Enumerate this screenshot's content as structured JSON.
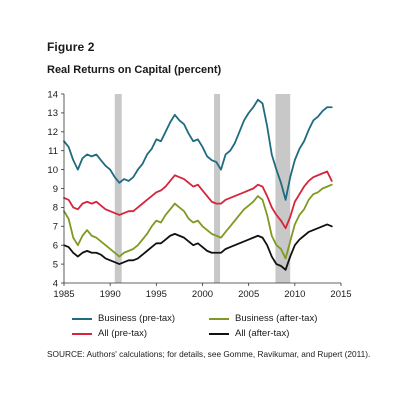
{
  "figure_label": "Figure 2",
  "title": "Real Returns on Capital (percent)",
  "source": "SOURCE: Authors' calculations; for details, see Gomme, Ravikumar, and Rupert (2011).",
  "colors": {
    "business_pre_tax": "#1f6b80",
    "all_pre_tax": "#d6253b",
    "business_after_tax": "#7f9a23",
    "all_after_tax": "#111111",
    "recession": "#c8c8c8",
    "axis": "#333333"
  },
  "chart_data": {
    "type": "line",
    "title": "Real Returns on Capital (percent)",
    "xlabel": "",
    "ylabel": "",
    "xlim": [
      1985,
      2015
    ],
    "ylim": [
      4,
      14
    ],
    "x_ticks": [
      1985,
      1990,
      1995,
      2000,
      2005,
      2010,
      2015
    ],
    "y_ticks": [
      4,
      5,
      6,
      7,
      8,
      9,
      10,
      11,
      12,
      13,
      14
    ],
    "grid": false,
    "legend_position": "bottom",
    "recession_shading": [
      {
        "start": 1990.5,
        "end": 1991.25
      },
      {
        "start": 2001.25,
        "end": 2001.9
      },
      {
        "start": 2007.9,
        "end": 2009.5
      }
    ],
    "series": [
      {
        "name": "Business (pre-tax)",
        "color_key": "business_pre_tax",
        "x": [
          1985,
          1985.5,
          1986,
          1986.5,
          1987,
          1987.5,
          1988,
          1988.5,
          1989,
          1989.5,
          1990,
          1990.5,
          1991,
          1991.5,
          1992,
          1992.5,
          1993,
          1993.5,
          1994,
          1994.5,
          1995,
          1995.5,
          1996,
          1996.5,
          1997,
          1997.5,
          1998,
          1998.5,
          1999,
          1999.5,
          2000,
          2000.5,
          2001,
          2001.5,
          2002,
          2002.5,
          2003,
          2003.5,
          2004,
          2004.5,
          2005,
          2005.5,
          2006,
          2006.5,
          2007,
          2007.5,
          2008,
          2008.5,
          2009,
          2009.5,
          2010,
          2010.5,
          2011,
          2011.5,
          2012,
          2012.5,
          2013,
          2013.5,
          2014
        ],
        "y": [
          11.5,
          11.2,
          10.5,
          10.0,
          10.6,
          10.8,
          10.7,
          10.8,
          10.5,
          10.2,
          10.0,
          9.6,
          9.3,
          9.5,
          9.4,
          9.6,
          10.0,
          10.3,
          10.8,
          11.1,
          11.6,
          11.5,
          12.0,
          12.5,
          12.9,
          12.6,
          12.4,
          11.9,
          11.5,
          11.6,
          11.2,
          10.7,
          10.5,
          10.4,
          10.0,
          10.8,
          11.0,
          11.4,
          12.0,
          12.6,
          13.0,
          13.3,
          13.7,
          13.5,
          12.3,
          10.8,
          10.0,
          9.3,
          8.4,
          9.6,
          10.5,
          11.1,
          11.5,
          12.1,
          12.6,
          12.8,
          13.1,
          13.3,
          13.3
        ]
      },
      {
        "name": "All (pre-tax)",
        "color_key": "all_pre_tax",
        "x": [
          1985,
          1985.5,
          1986,
          1986.5,
          1987,
          1987.5,
          1988,
          1988.5,
          1989,
          1989.5,
          1990,
          1990.5,
          1991,
          1991.5,
          1992,
          1992.5,
          1993,
          1993.5,
          1994,
          1994.5,
          1995,
          1995.5,
          1996,
          1996.5,
          1997,
          1997.5,
          1998,
          1998.5,
          1999,
          1999.5,
          2000,
          2000.5,
          2001,
          2001.5,
          2002,
          2002.5,
          2003,
          2003.5,
          2004,
          2004.5,
          2005,
          2005.5,
          2006,
          2006.5,
          2007,
          2007.5,
          2008,
          2008.5,
          2009,
          2009.5,
          2010,
          2010.5,
          2011,
          2011.5,
          2012,
          2012.5,
          2013,
          2013.5,
          2014
        ],
        "y": [
          8.5,
          8.4,
          8.0,
          7.9,
          8.2,
          8.3,
          8.2,
          8.3,
          8.1,
          7.9,
          7.8,
          7.7,
          7.6,
          7.7,
          7.8,
          7.8,
          8.0,
          8.2,
          8.4,
          8.6,
          8.8,
          8.9,
          9.1,
          9.4,
          9.7,
          9.6,
          9.5,
          9.3,
          9.1,
          9.2,
          8.9,
          8.6,
          8.3,
          8.2,
          8.2,
          8.4,
          8.5,
          8.6,
          8.7,
          8.8,
          8.9,
          9.0,
          9.2,
          9.1,
          8.6,
          8.0,
          7.6,
          7.3,
          6.9,
          7.5,
          8.3,
          8.7,
          9.1,
          9.4,
          9.6,
          9.7,
          9.8,
          9.9,
          9.4
        ]
      },
      {
        "name": "Business (after-tax)",
        "color_key": "business_after_tax",
        "x": [
          1985,
          1985.5,
          1986,
          1986.5,
          1987,
          1987.5,
          1988,
          1988.5,
          1989,
          1989.5,
          1990,
          1990.5,
          1991,
          1991.5,
          1992,
          1992.5,
          1993,
          1993.5,
          1994,
          1994.5,
          1995,
          1995.5,
          1996,
          1996.5,
          1997,
          1997.5,
          1998,
          1998.5,
          1999,
          1999.5,
          2000,
          2000.5,
          2001,
          2001.5,
          2002,
          2002.5,
          2003,
          2003.5,
          2004,
          2004.5,
          2005,
          2005.5,
          2006,
          2006.5,
          2007,
          2007.5,
          2008,
          2008.5,
          2009,
          2009.5,
          2010,
          2010.5,
          2011,
          2011.5,
          2012,
          2012.5,
          2013,
          2013.5,
          2014
        ],
        "y": [
          7.8,
          7.4,
          6.4,
          6.0,
          6.5,
          6.8,
          6.5,
          6.4,
          6.2,
          6.0,
          5.8,
          5.6,
          5.4,
          5.6,
          5.7,
          5.8,
          6.0,
          6.3,
          6.6,
          7.0,
          7.3,
          7.2,
          7.6,
          7.9,
          8.2,
          8.0,
          7.8,
          7.4,
          7.2,
          7.3,
          7.0,
          6.8,
          6.6,
          6.5,
          6.4,
          6.7,
          7.0,
          7.3,
          7.6,
          7.9,
          8.1,
          8.3,
          8.6,
          8.4,
          7.6,
          6.5,
          6.0,
          5.8,
          5.3,
          6.2,
          7.1,
          7.6,
          7.9,
          8.4,
          8.7,
          8.8,
          9.0,
          9.1,
          9.2
        ]
      },
      {
        "name": "All (after-tax)",
        "color_key": "all_after_tax",
        "x": [
          1985,
          1985.5,
          1986,
          1986.5,
          1987,
          1987.5,
          1988,
          1988.5,
          1989,
          1989.5,
          1990,
          1990.5,
          1991,
          1991.5,
          1992,
          1992.5,
          1993,
          1993.5,
          1994,
          1994.5,
          1995,
          1995.5,
          1996,
          1996.5,
          1997,
          1997.5,
          1998,
          1998.5,
          1999,
          1999.5,
          2000,
          2000.5,
          2001,
          2001.5,
          2002,
          2002.5,
          2003,
          2003.5,
          2004,
          2004.5,
          2005,
          2005.5,
          2006,
          2006.5,
          2007,
          2007.5,
          2008,
          2008.5,
          2009,
          2009.5,
          2010,
          2010.5,
          2011,
          2011.5,
          2012,
          2012.5,
          2013,
          2013.5,
          2014
        ],
        "y": [
          6.0,
          5.9,
          5.6,
          5.4,
          5.6,
          5.7,
          5.6,
          5.6,
          5.5,
          5.3,
          5.2,
          5.1,
          5.0,
          5.1,
          5.2,
          5.2,
          5.3,
          5.5,
          5.7,
          5.9,
          6.1,
          6.1,
          6.3,
          6.5,
          6.6,
          6.5,
          6.4,
          6.2,
          6.0,
          6.1,
          5.9,
          5.7,
          5.6,
          5.6,
          5.6,
          5.8,
          5.9,
          6.0,
          6.1,
          6.2,
          6.3,
          6.4,
          6.5,
          6.4,
          6.0,
          5.4,
          5.0,
          4.9,
          4.7,
          5.4,
          6.0,
          6.3,
          6.5,
          6.7,
          6.8,
          6.9,
          7.0,
          7.1,
          7.0
        ]
      }
    ]
  }
}
